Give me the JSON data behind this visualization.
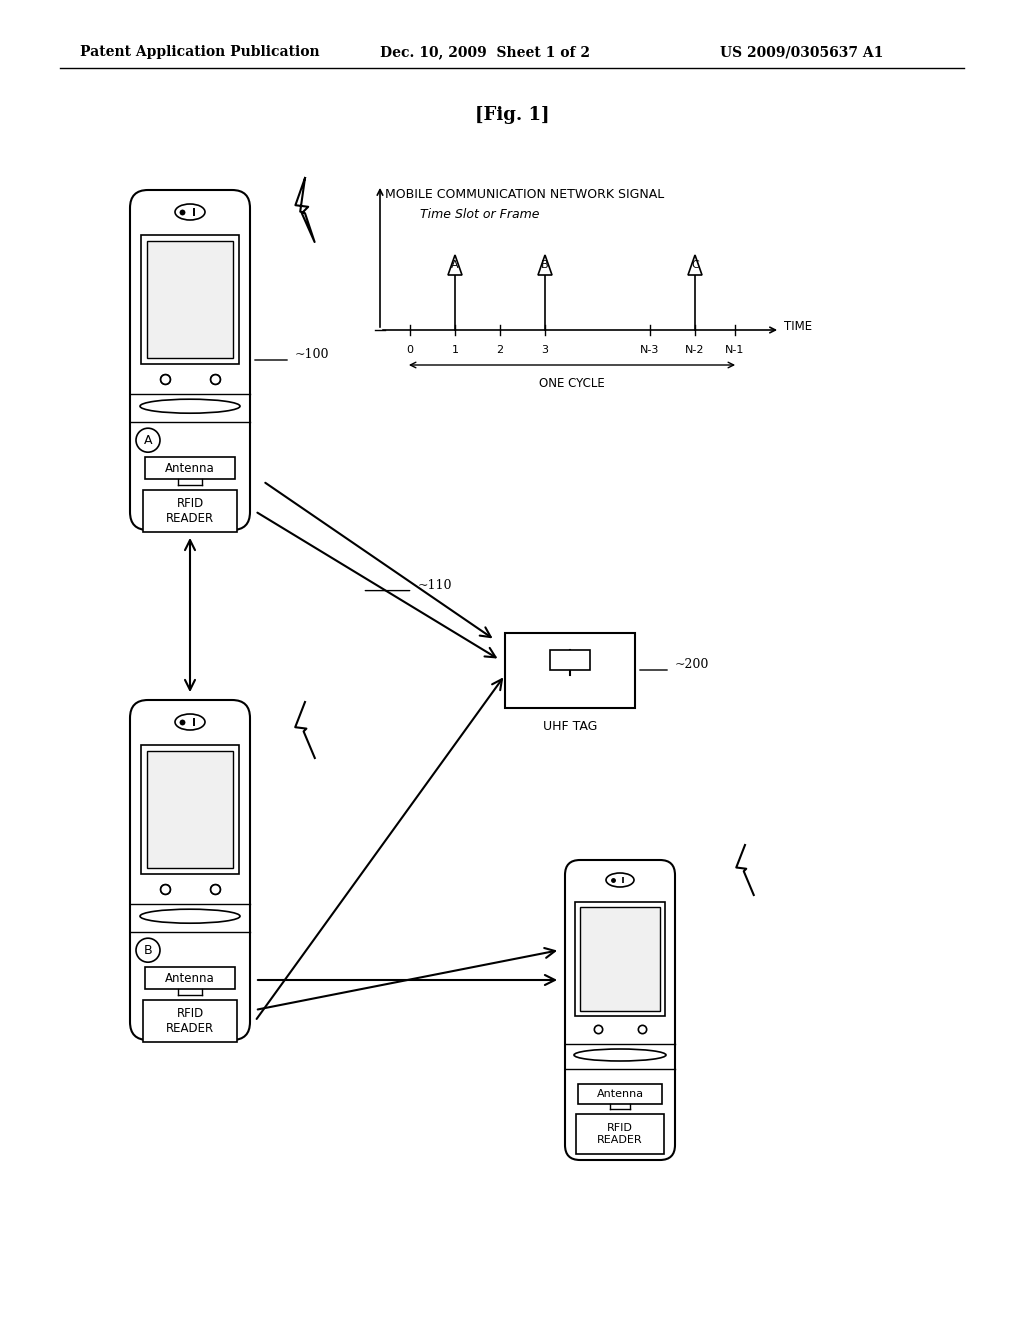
{
  "title_line1": "Patent Application Publication",
  "title_date": "Dec. 10, 2009  Sheet 1 of 2",
  "title_num": "US 2009/0305637 A1",
  "fig_label": "[Fig. 1]",
  "bg_color": "#ffffff",
  "line_color": "#000000",
  "signal_label": "MOBILE COMMUNICATION NETWORK SIGNAL",
  "timeslot_label": "Time Slot or Frame",
  "time_label": "TIME",
  "one_cycle_label": "ONE CYCLE",
  "uhf_tag_label": "UHF TAG",
  "antenna_label": "Antenna",
  "rfid_label": "RFID\nREADER",
  "label_100": "100",
  "label_110": "110",
  "label_200": "200",
  "label_A": "A",
  "label_B": "B",
  "tick_labels": [
    "0",
    "1",
    "2",
    "3",
    "N-3",
    "N-2",
    "N-1"
  ]
}
